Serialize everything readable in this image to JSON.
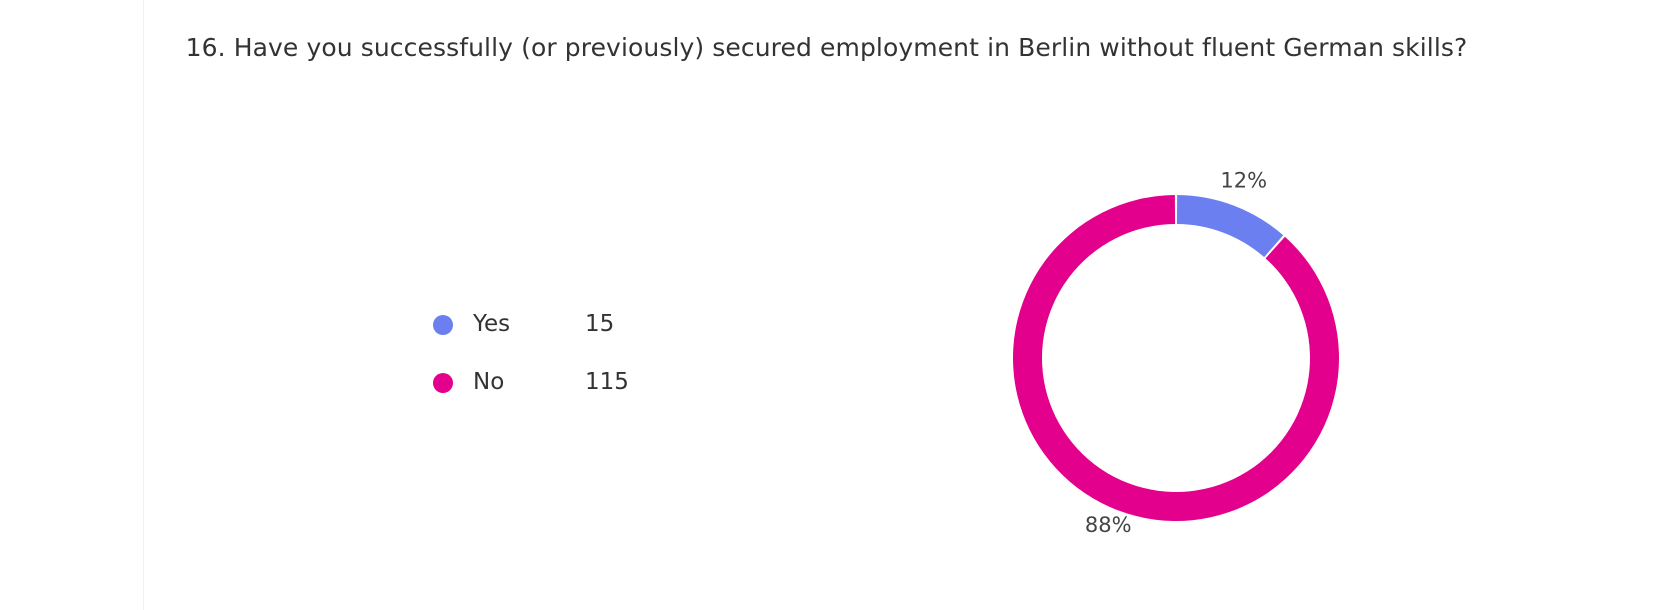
{
  "question": {
    "title": "16. Have you successfully (or previously) secured employment in Berlin without fluent German skills?"
  },
  "chart_data": {
    "type": "pie",
    "style": "donut",
    "title": "16. Have you successfully (or previously) secured employment in Berlin without fluent German skills?",
    "legend_position": "left",
    "series": [
      {
        "name": "Yes",
        "value": 15,
        "percent_label": "12%",
        "color": "#6B7FF0"
      },
      {
        "name": "No",
        "value": 115,
        "percent_label": "88%",
        "color": "#E3008C"
      }
    ]
  }
}
